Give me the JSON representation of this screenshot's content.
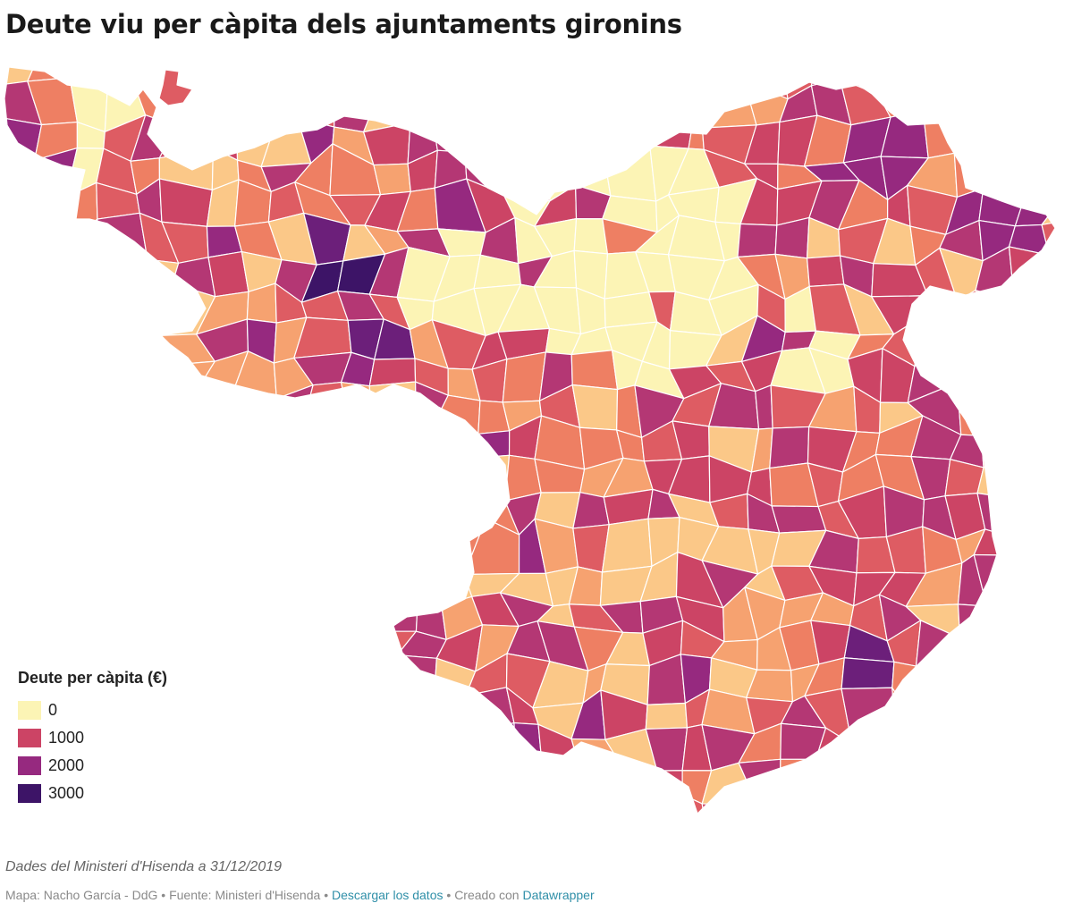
{
  "title": "Deute viu per càpita dels ajuntaments gironins",
  "legend": {
    "title": "Deute per càpita (€)",
    "items": [
      {
        "label": "0",
        "color": "#fcf4b5"
      },
      {
        "label": "1000",
        "color": "#cc4465"
      },
      {
        "label": "2000",
        "color": "#96297f"
      },
      {
        "label": "3000",
        "color": "#3d1467"
      }
    ]
  },
  "colors": {
    "scale": [
      "#fcf4b5",
      "#fbc888",
      "#f6a270",
      "#ee7f63",
      "#de5c63",
      "#cc4465",
      "#b43774",
      "#96297f",
      "#6c1f7a",
      "#3d1467"
    ]
  },
  "notes": "Dades del Ministeri d'Hisenda a 31/12/2019",
  "footer": {
    "map_credit": "Mapa: Nacho García - DdG",
    "separator": "•",
    "source": "Fuente: Ministeri d'Hisenda",
    "download_link": "Descargar los datos",
    "created_with": "Creado con",
    "datawrapper_link": "Datawrapper"
  }
}
